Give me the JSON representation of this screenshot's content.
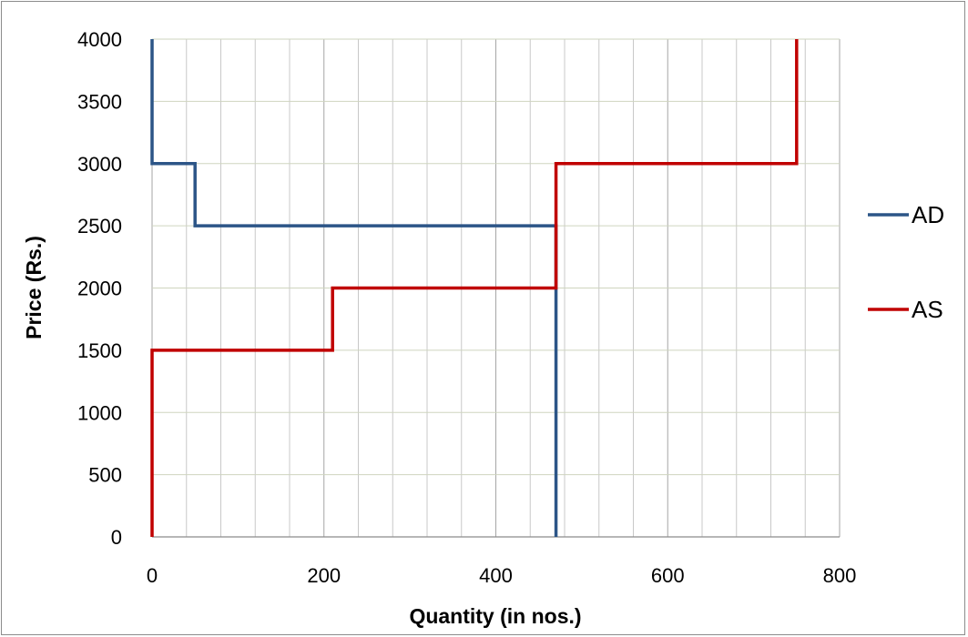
{
  "chart_data": {
    "type": "line",
    "xlabel": "Quantity (in nos.)",
    "ylabel": "Price (Rs.)",
    "xlim": [
      0,
      800
    ],
    "ylim": [
      0,
      4000
    ],
    "x_ticks": [
      0,
      200,
      400,
      600,
      800
    ],
    "y_ticks": [
      0,
      500,
      1000,
      1500,
      2000,
      2500,
      3000,
      3500,
      4000
    ],
    "x_minor_step": 40,
    "grid": true,
    "legend_position": "right",
    "series": [
      {
        "name": "AD",
        "color": "#2c5587",
        "points": [
          [
            0,
            4000
          ],
          [
            0,
            3000
          ],
          [
            50,
            3000
          ],
          [
            50,
            2500
          ],
          [
            470,
            2500
          ],
          [
            470,
            0
          ]
        ]
      },
      {
        "name": "AS",
        "color": "#c00000",
        "points": [
          [
            0,
            0
          ],
          [
            0,
            1500
          ],
          [
            210,
            1500
          ],
          [
            210,
            2000
          ],
          [
            470,
            2000
          ],
          [
            470,
            3000
          ],
          [
            750,
            3000
          ],
          [
            750,
            4000
          ]
        ]
      }
    ]
  }
}
